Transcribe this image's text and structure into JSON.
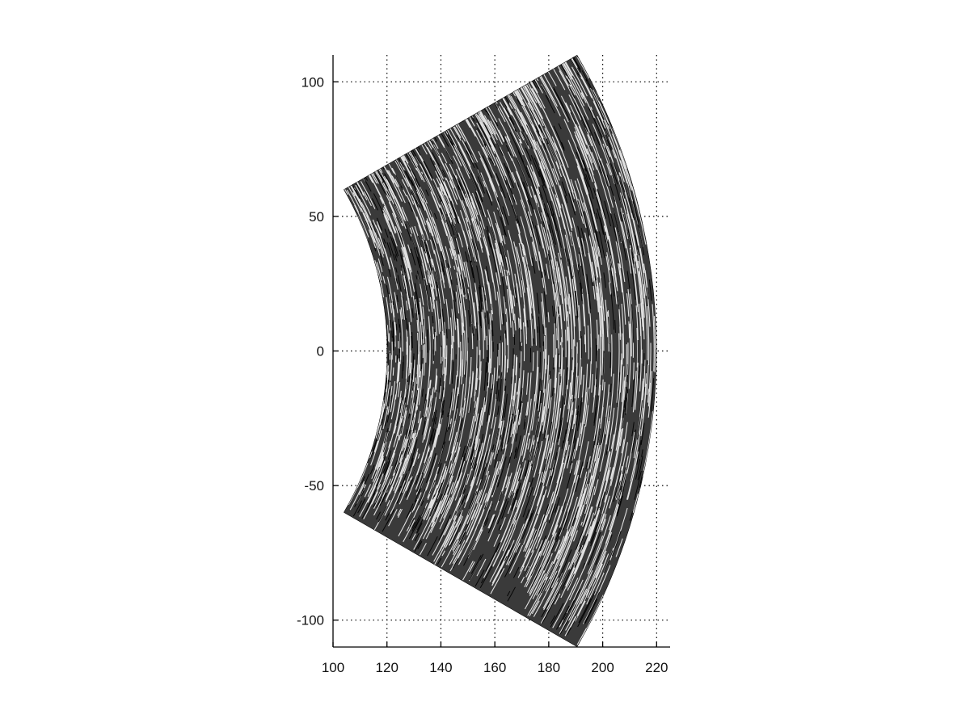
{
  "chart_data": {
    "type": "scatter",
    "title": "",
    "xlabel": "",
    "ylabel": "",
    "xlim": [
      100,
      225
    ],
    "ylim": [
      -110,
      110
    ],
    "x_ticks": [
      100,
      120,
      140,
      160,
      180,
      200,
      220
    ],
    "y_ticks": [
      100,
      50,
      0,
      -50,
      -100
    ],
    "x_tick_labels": [
      "100",
      "120",
      "140",
      "160",
      "180",
      "200",
      "220"
    ],
    "y_tick_labels": [
      "100",
      "50",
      "0",
      "-50",
      "-100"
    ],
    "grid": true,
    "grid_style": "dotted",
    "sector": {
      "r_inner": 120,
      "r_outer": 220,
      "angle_deg_min": -30,
      "angle_deg_max": 30,
      "fill": "dense radial-arc line texture"
    },
    "colors": {
      "lines": "#000000",
      "background": "#ffffff",
      "tick_text": "#111111"
    }
  }
}
